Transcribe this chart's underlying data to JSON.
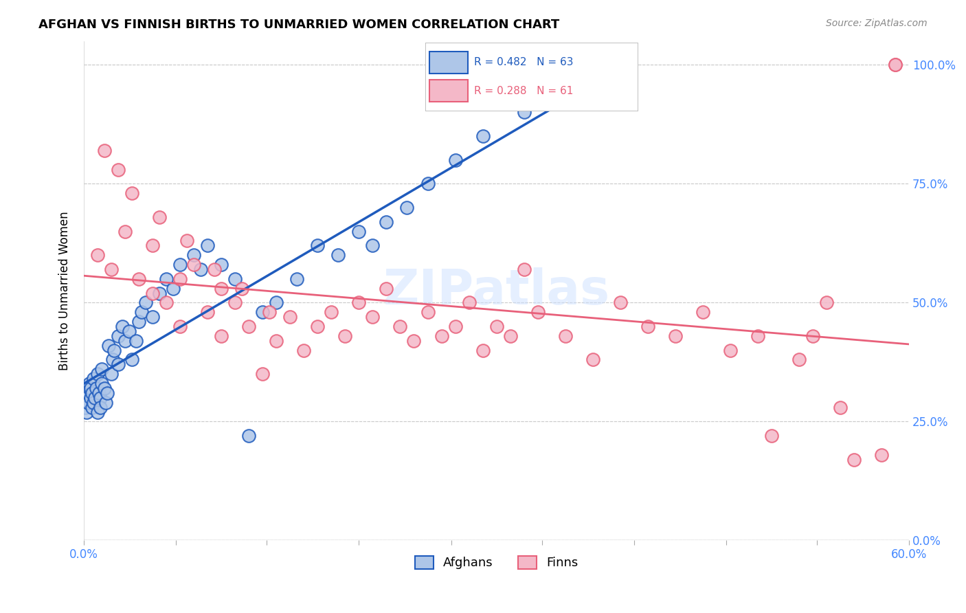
{
  "title": "AFGHAN VS FINNISH BIRTHS TO UNMARRIED WOMEN CORRELATION CHART",
  "source": "Source: ZipAtlas.com",
  "xlabel": "",
  "ylabel": "Births to Unmarried Women",
  "xmin": 0.0,
  "xmax": 0.6,
  "ymin": 0.0,
  "ymax": 1.05,
  "ytick_labels": [
    "",
    "25.0%",
    "50.0%",
    "75.0%",
    "100.0%"
  ],
  "ytick_values": [
    0.0,
    0.25,
    0.5,
    0.75,
    1.0
  ],
  "xtick_labels": [
    "0.0%",
    "",
    "",
    "",
    "",
    "",
    "",
    "",
    "",
    "60.0%"
  ],
  "xtick_values": [
    0.0,
    0.067,
    0.133,
    0.2,
    0.267,
    0.333,
    0.4,
    0.467,
    0.533,
    0.6
  ],
  "afghans_R": 0.482,
  "afghans_N": 63,
  "finns_R": 0.288,
  "finns_N": 61,
  "afghan_color": "#aec6e8",
  "finn_color": "#f4b8c8",
  "afghan_line_color": "#1f5bbd",
  "finn_line_color": "#e8607a",
  "watermark": "ZIPatlas",
  "background_color": "#ffffff",
  "afghans_x": [
    0.0,
    0.001,
    0.002,
    0.003,
    0.003,
    0.004,
    0.004,
    0.005,
    0.005,
    0.006,
    0.006,
    0.007,
    0.007,
    0.008,
    0.009,
    0.01,
    0.01,
    0.011,
    0.012,
    0.012,
    0.013,
    0.013,
    0.015,
    0.016,
    0.017,
    0.018,
    0.02,
    0.021,
    0.022,
    0.025,
    0.025,
    0.028,
    0.03,
    0.033,
    0.035,
    0.038,
    0.04,
    0.042,
    0.045,
    0.05,
    0.055,
    0.06,
    0.065,
    0.07,
    0.08,
    0.085,
    0.09,
    0.1,
    0.11,
    0.12,
    0.13,
    0.14,
    0.155,
    0.17,
    0.185,
    0.2,
    0.21,
    0.22,
    0.235,
    0.25,
    0.27,
    0.29,
    0.32
  ],
  "afghans_y": [
    0.3,
    0.28,
    0.27,
    0.29,
    0.31,
    0.32,
    0.33,
    0.3,
    0.32,
    0.28,
    0.31,
    0.34,
    0.29,
    0.3,
    0.32,
    0.27,
    0.35,
    0.31,
    0.3,
    0.28,
    0.33,
    0.36,
    0.32,
    0.29,
    0.31,
    0.41,
    0.35,
    0.38,
    0.4,
    0.43,
    0.37,
    0.45,
    0.42,
    0.44,
    0.38,
    0.42,
    0.46,
    0.48,
    0.5,
    0.47,
    0.52,
    0.55,
    0.53,
    0.58,
    0.6,
    0.57,
    0.62,
    0.58,
    0.55,
    0.22,
    0.48,
    0.5,
    0.55,
    0.62,
    0.6,
    0.65,
    0.62,
    0.67,
    0.7,
    0.75,
    0.8,
    0.85,
    0.9
  ],
  "finns_x": [
    0.01,
    0.02,
    0.03,
    0.04,
    0.05,
    0.05,
    0.06,
    0.07,
    0.07,
    0.08,
    0.09,
    0.1,
    0.1,
    0.11,
    0.12,
    0.13,
    0.14,
    0.15,
    0.16,
    0.17,
    0.18,
    0.19,
    0.2,
    0.21,
    0.22,
    0.23,
    0.24,
    0.25,
    0.26,
    0.27,
    0.28,
    0.29,
    0.3,
    0.31,
    0.32,
    0.33,
    0.35,
    0.37,
    0.39,
    0.41,
    0.43,
    0.45,
    0.47,
    0.49,
    0.5,
    0.52,
    0.53,
    0.54,
    0.55,
    0.56,
    0.58,
    0.59,
    0.015,
    0.025,
    0.035,
    0.055,
    0.075,
    0.095,
    0.115,
    0.135,
    0.59
  ],
  "finns_y": [
    0.6,
    0.57,
    0.65,
    0.55,
    0.52,
    0.62,
    0.5,
    0.55,
    0.45,
    0.58,
    0.48,
    0.53,
    0.43,
    0.5,
    0.45,
    0.35,
    0.42,
    0.47,
    0.4,
    0.45,
    0.48,
    0.43,
    0.5,
    0.47,
    0.53,
    0.45,
    0.42,
    0.48,
    0.43,
    0.45,
    0.5,
    0.4,
    0.45,
    0.43,
    0.57,
    0.48,
    0.43,
    0.38,
    0.5,
    0.45,
    0.43,
    0.48,
    0.4,
    0.43,
    0.22,
    0.38,
    0.43,
    0.5,
    0.28,
    0.17,
    0.18,
    1.0,
    0.82,
    0.78,
    0.73,
    0.68,
    0.63,
    0.57,
    0.53,
    0.48,
    1.0
  ]
}
